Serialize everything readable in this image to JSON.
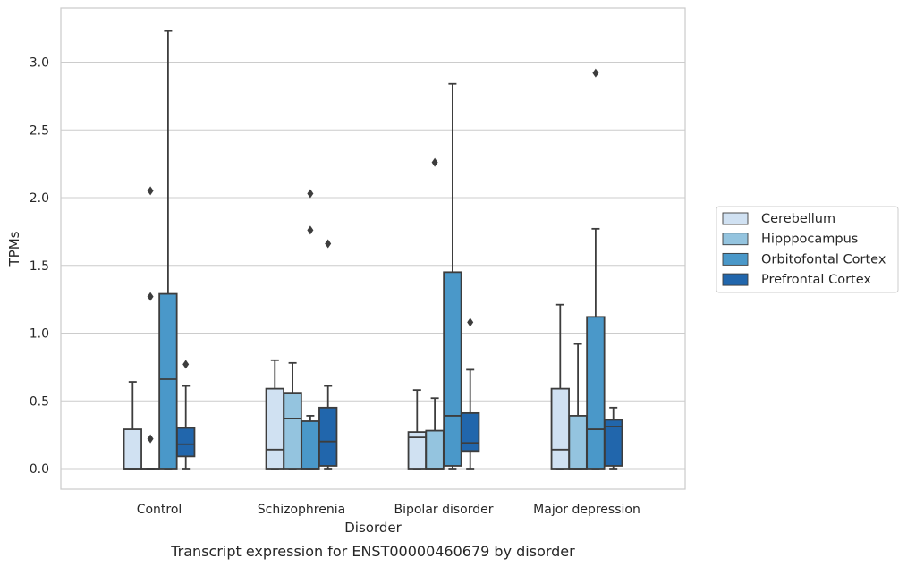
{
  "chart_data": {
    "type": "box",
    "title": "",
    "xlabel": "Disorder",
    "ylabel": "TPMs",
    "caption": "Transcript expression for ENST00000460679 by disorder",
    "ylim": [
      -0.16,
      3.39
    ],
    "yticks": [
      "0.0",
      "0.5",
      "1.0",
      "1.5",
      "2.0",
      "2.5",
      "3.0"
    ],
    "ytick_values": [
      0,
      0.5,
      1.0,
      1.5,
      2.0,
      2.5,
      3.0
    ],
    "grid": "horizontal",
    "legend_position": "right",
    "categories": [
      "Control",
      "Schizophrenia",
      "Bipolar disorder",
      "Major depression"
    ],
    "series": [
      {
        "name": "Cerebellum",
        "color": "#d0e1f2",
        "boxes": [
          {
            "min": 0.0,
            "q1": 0.0,
            "median": 0.0,
            "q3": 0.29,
            "max": 0.64,
            "outliers": []
          },
          {
            "min": 0.0,
            "q1": 0.0,
            "median": 0.14,
            "q3": 0.59,
            "max": 0.8,
            "outliers": []
          },
          {
            "min": 0.0,
            "q1": 0.0,
            "median": 0.23,
            "q3": 0.27,
            "max": 0.58,
            "outliers": []
          },
          {
            "min": 0.0,
            "q1": 0.0,
            "median": 0.14,
            "q3": 0.59,
            "max": 1.21,
            "outliers": []
          }
        ]
      },
      {
        "name": "Hipppocampus",
        "color": "#94c4df",
        "boxes": [
          {
            "min": 0.0,
            "q1": 0.0,
            "median": 0.0,
            "q3": 0.0,
            "max": 0.0,
            "outliers": [
              0.22,
              1.27,
              2.05
            ]
          },
          {
            "min": 0.0,
            "q1": 0.0,
            "median": 0.37,
            "q3": 0.56,
            "max": 0.78,
            "outliers": []
          },
          {
            "min": 0.0,
            "q1": 0.0,
            "median": 0.0,
            "q3": 0.28,
            "max": 0.52,
            "outliers": [
              2.26
            ]
          },
          {
            "min": 0.0,
            "q1": 0.0,
            "median": 0.0,
            "q3": 0.39,
            "max": 0.92,
            "outliers": []
          }
        ]
      },
      {
        "name": "Orbitofontal Cortex",
        "color": "#4a98c9",
        "boxes": [
          {
            "min": 0.0,
            "q1": 0.0,
            "median": 0.66,
            "q3": 1.29,
            "max": 3.23,
            "outliers": []
          },
          {
            "min": 0.0,
            "q1": 0.0,
            "median": 0.0,
            "q3": 0.35,
            "max": 0.39,
            "outliers": [
              1.76,
              2.03
            ]
          },
          {
            "min": 0.0,
            "q1": 0.02,
            "median": 0.39,
            "q3": 1.45,
            "max": 2.84,
            "outliers": []
          },
          {
            "min": 0.0,
            "q1": 0.0,
            "median": 0.29,
            "q3": 1.12,
            "max": 1.77,
            "outliers": [
              2.92
            ]
          }
        ]
      },
      {
        "name": "Prefrontal Cortex",
        "color": "#2166ac",
        "boxes": [
          {
            "min": 0.0,
            "q1": 0.09,
            "median": 0.18,
            "q3": 0.3,
            "max": 0.61,
            "outliers": [
              0.77
            ]
          },
          {
            "min": 0.0,
            "q1": 0.02,
            "median": 0.2,
            "q3": 0.45,
            "max": 0.61,
            "outliers": [
              1.66
            ]
          },
          {
            "min": 0.0,
            "q1": 0.13,
            "median": 0.19,
            "q3": 0.41,
            "max": 0.73,
            "outliers": [
              1.08
            ]
          },
          {
            "min": 0.0,
            "q1": 0.02,
            "median": 0.31,
            "q3": 0.36,
            "max": 0.45,
            "outliers": []
          }
        ]
      }
    ]
  }
}
